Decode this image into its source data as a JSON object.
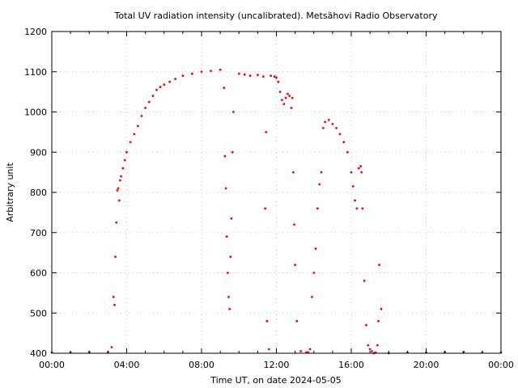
{
  "chart_data": {
    "type": "scatter",
    "title": "Total UV radiation intensity (uncalibrated). Metsähovi Radio Observatory",
    "xlabel": "Time UT, on date 2024-05-05",
    "ylabel": "Arbitrary unit",
    "xlim": [
      0,
      24
    ],
    "ylim": [
      400,
      1200
    ],
    "x_ticks": [
      0,
      4,
      8,
      12,
      16,
      20,
      24
    ],
    "x_tick_labels": [
      "00:00",
      "04:00",
      "08:00",
      "12:00",
      "16:00",
      "20:00",
      "00:00"
    ],
    "y_ticks": [
      400,
      500,
      600,
      700,
      800,
      900,
      1000,
      1100,
      1200
    ],
    "y_tick_labels": [
      "400",
      "500",
      "600",
      "700",
      "800",
      "900",
      "1000",
      "1100",
      "1200"
    ],
    "grid": true,
    "marker_color": "#ff0000",
    "series": [
      {
        "x": [
          0.0,
          1.0,
          2.0,
          3.0,
          3.2,
          3.3,
          3.35,
          3.4,
          3.45,
          3.5,
          3.55,
          3.6,
          3.65,
          3.7,
          3.8,
          3.9,
          4.0,
          4.2,
          4.4,
          4.6,
          4.8,
          5.0,
          5.2,
          5.4,
          5.6,
          5.8,
          6.0,
          6.3,
          6.6,
          7.0,
          7.5,
          8.0,
          8.5,
          9.0,
          9.2,
          9.25,
          9.3,
          9.35,
          9.4,
          9.45,
          9.5,
          9.55,
          9.6,
          9.65,
          9.7,
          10.0,
          10.3,
          10.6,
          11.0,
          11.3,
          11.4,
          11.45,
          11.5,
          11.6,
          11.7,
          11.9,
          12.0,
          12.1,
          12.2,
          12.3,
          12.4,
          12.5,
          12.6,
          12.7,
          12.8,
          12.85,
          12.9,
          12.95,
          13.0,
          13.1,
          13.3,
          13.6,
          13.7,
          13.8,
          13.9,
          14.0,
          14.1,
          14.2,
          14.3,
          14.4,
          14.5,
          14.6,
          14.8,
          15.0,
          15.2,
          15.4,
          15.6,
          15.8,
          16.0,
          16.1,
          16.2,
          16.3,
          16.4,
          16.5,
          16.55,
          16.6,
          16.7,
          16.8,
          16.9,
          17.0,
          17.1,
          17.2,
          17.3,
          17.4,
          17.45,
          17.5,
          17.6,
          18.0,
          19.0,
          20.0,
          21.0,
          22.0,
          23.0,
          24.0
        ],
        "y": [
          402,
          402,
          403,
          403,
          415,
          540,
          520,
          640,
          725,
          805,
          810,
          780,
          830,
          840,
          860,
          880,
          900,
          925,
          945,
          965,
          990,
          1010,
          1025,
          1040,
          1055,
          1062,
          1068,
          1075,
          1082,
          1090,
          1095,
          1100,
          1102,
          1105,
          1060,
          890,
          810,
          690,
          600,
          540,
          510,
          640,
          735,
          900,
          1000,
          1095,
          1093,
          1090,
          1092,
          1088,
          760,
          950,
          480,
          410,
          1090,
          1088,
          1085,
          1075,
          1050,
          1030,
          1020,
          1035,
          1045,
          1040,
          1010,
          1035,
          850,
          720,
          620,
          480,
          405,
          402,
          402,
          410,
          540,
          600,
          660,
          760,
          820,
          850,
          960,
          975,
          980,
          970,
          960,
          945,
          925,
          900,
          850,
          815,
          780,
          760,
          860,
          865,
          850,
          760,
          580,
          470,
          420,
          410,
          405,
          400,
          402,
          420,
          480,
          620,
          510,
          400,
          402,
          402,
          403,
          403,
          402,
          402
        ]
      }
    ]
  }
}
